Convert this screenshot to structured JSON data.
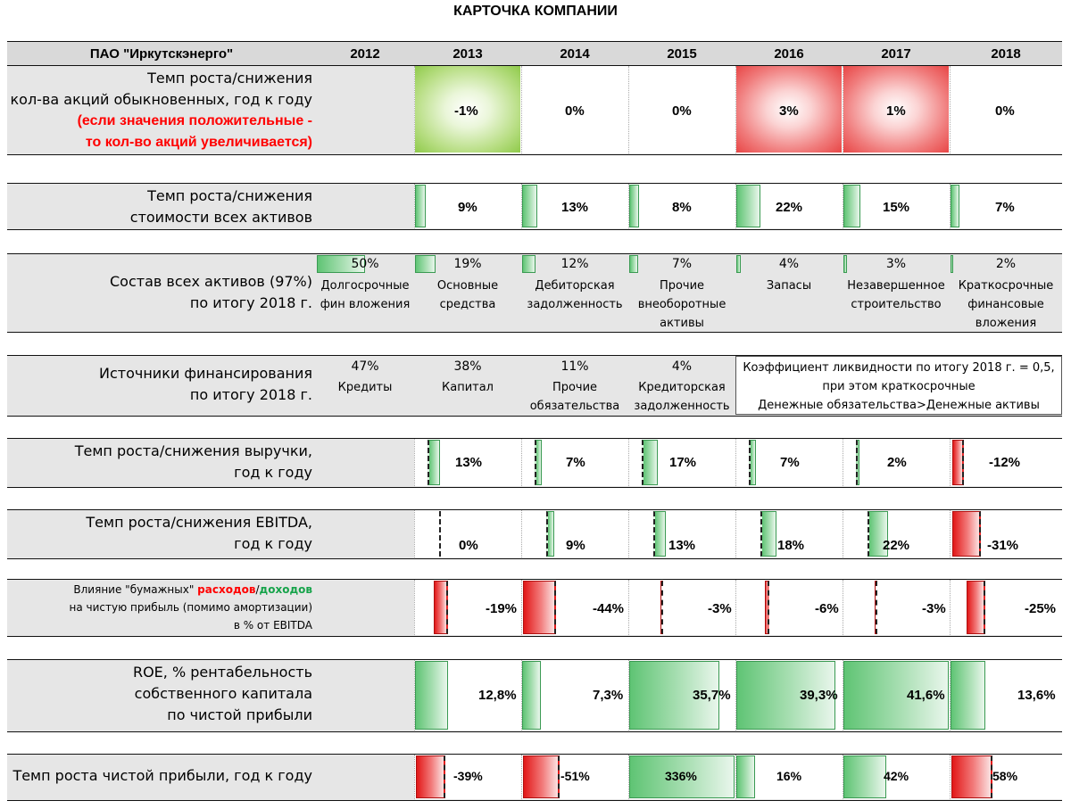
{
  "title": "КАРТОЧКА КОМПАНИИ",
  "company": "ПАО \"Иркутскэнерго\"",
  "years": [
    "2012",
    "2013",
    "2014",
    "2015",
    "2016",
    "2017",
    "2018"
  ],
  "shares": {
    "label1": "Темп роста/снижения",
    "label2": "кол-ва акций обыкновенных,  год к году",
    "note1": "(если значения положительные -",
    "note2": "то кол-во акций увеличивается)",
    "values": [
      "-1%",
      "0%",
      "0%",
      "3%",
      "1%",
      "0%"
    ]
  },
  "assets_growth": {
    "label1": "Темп роста/снижения",
    "label2": "стоимости всех активов",
    "values": [
      "9%",
      "13%",
      "8%",
      "22%",
      "15%",
      "7%"
    ]
  },
  "assets_structure": {
    "label1": "Состав всех активов (97%)",
    "label2": "по итогу 2018 г.",
    "items": [
      {
        "pct": "50%",
        "name1": "Долгосрочные",
        "name2": "фин вложения",
        "name3": ""
      },
      {
        "pct": "19%",
        "name1": "Основные",
        "name2": "средства",
        "name3": ""
      },
      {
        "pct": "12%",
        "name1": "Дебиторская",
        "name2": "задолженность",
        "name3": ""
      },
      {
        "pct": "7%",
        "name1": "Прочие",
        "name2": "внеоборотные",
        "name3": "активы"
      },
      {
        "pct": "4%",
        "name1": "Запасы",
        "name2": "",
        "name3": ""
      },
      {
        "pct": "3%",
        "name1": "Незавершенное",
        "name2": "строительство",
        "name3": ""
      },
      {
        "pct": "2%",
        "name1": "Краткосрочные",
        "name2": "финансовые",
        "name3": "вложения"
      }
    ]
  },
  "funding": {
    "label1": "Источники финансирования",
    "label2": "по итогу 2018 г.",
    "items": [
      {
        "pct": "47%",
        "name1": "Кредиты",
        "name2": ""
      },
      {
        "pct": "38%",
        "name1": "Капитал",
        "name2": ""
      },
      {
        "pct": "11%",
        "name1": "Прочие",
        "name2": "обязательства"
      },
      {
        "pct": "4%",
        "name1": "Кредиторская",
        "name2": "задолженность"
      }
    ],
    "liquidity1": "Коэффициент ликвидности по итогу 2018 г. = 0,5,",
    "liquidity2": "при этом краткосрочные",
    "liquidity3": "Денежные обязательства>Денежные активы"
  },
  "revenue": {
    "label1": "Темп роста/снижения выручки,",
    "label2": "год к году",
    "values": [
      "13%",
      "7%",
      "17%",
      "7%",
      "2%",
      "-12%"
    ]
  },
  "ebitda": {
    "label1": "Темп роста/снижения EBITDA,",
    "label2": "год к году",
    "values": [
      "0%",
      "9%",
      "13%",
      "18%",
      "22%",
      "-31%"
    ]
  },
  "paper": {
    "label1a": "Влияние \"бумажных\" ",
    "label1b": "расходов",
    "label1c": "/",
    "label1d": "доходов",
    "label2": "на чистую прибыль (помимо амортизации)",
    "label3": "в % от EBITDA",
    "values": [
      "-19%",
      "-44%",
      "-3%",
      "-6%",
      "-3%",
      "-25%"
    ]
  },
  "roe": {
    "label1": "ROE, % рентабельность",
    "label2": "собственного капитала",
    "label3": "по чистой прибыли",
    "values": [
      "12,8%",
      "7,3%",
      "35,7%",
      "39,3%",
      "41,6%",
      "13,6%"
    ]
  },
  "net_profit": {
    "label": "Темп роста чистой прибыли, год к году",
    "values": [
      "-39%",
      "-51%",
      "336%",
      "16%",
      "42%",
      "58%"
    ]
  },
  "colors": {
    "green": "#5fc474",
    "red": "#e21818",
    "band": "#e6e6e6",
    "note_red": "#ff0000",
    "note_green": "#16a34a"
  }
}
